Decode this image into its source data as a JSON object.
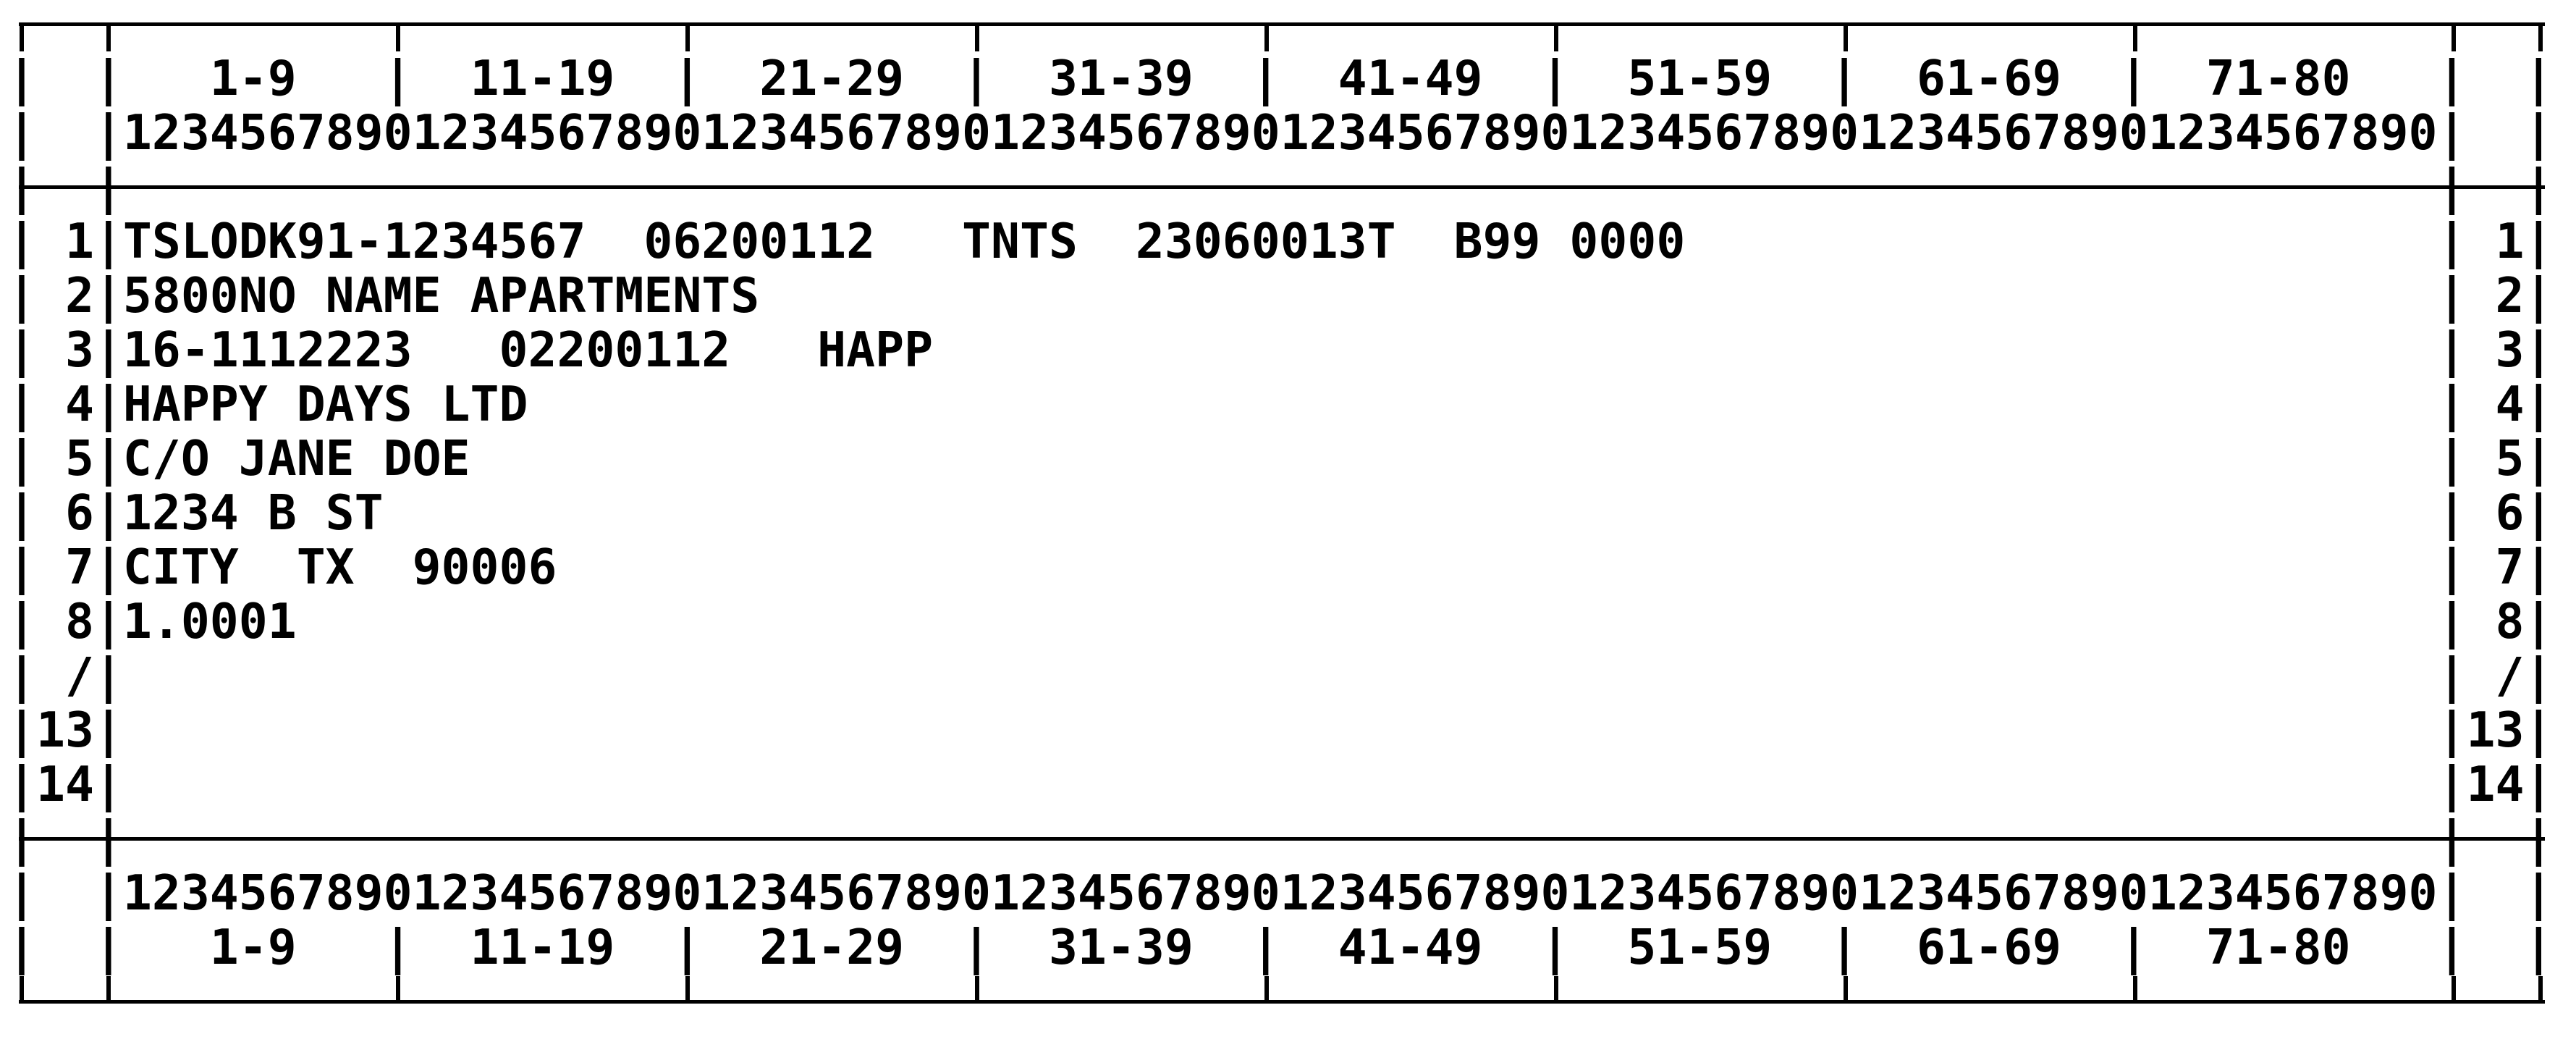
{
  "sheet": {
    "description": "80-column record layout print preview",
    "colors": {
      "foreground": "#000000",
      "background": "#ffffff"
    }
  },
  "grid": {
    "columns_total": 80,
    "group_width": 9,
    "group_headers": [
      "1-9",
      "11-19",
      "21-29",
      "31-39",
      "41-49",
      "51-59",
      "61-69",
      "71-80"
    ],
    "ruler": "12345678901234567890123456789012345678901234567890123456789012345678901234567890"
  },
  "rows": [
    {
      "label": "1",
      "content": "TSLODK91-1234567  06200112   TNTS  23060013T  B99 0000"
    },
    {
      "label": "2",
      "content": "5800NO NAME APARTMENTS"
    },
    {
      "label": "3",
      "content": "16-1112223   02200112   HAPP"
    },
    {
      "label": "4",
      "content": "HAPPY DAYS LTD"
    },
    {
      "label": "5",
      "content": "C/O JANE DOE"
    },
    {
      "label": "6",
      "content": "1234 B ST"
    },
    {
      "label": "7",
      "content": "CITY  TX  90006"
    },
    {
      "label": "8",
      "content": "1.0001"
    },
    {
      "label": "/",
      "content": ""
    },
    {
      "label": "13",
      "content": ""
    },
    {
      "label": "14",
      "content": ""
    }
  ]
}
